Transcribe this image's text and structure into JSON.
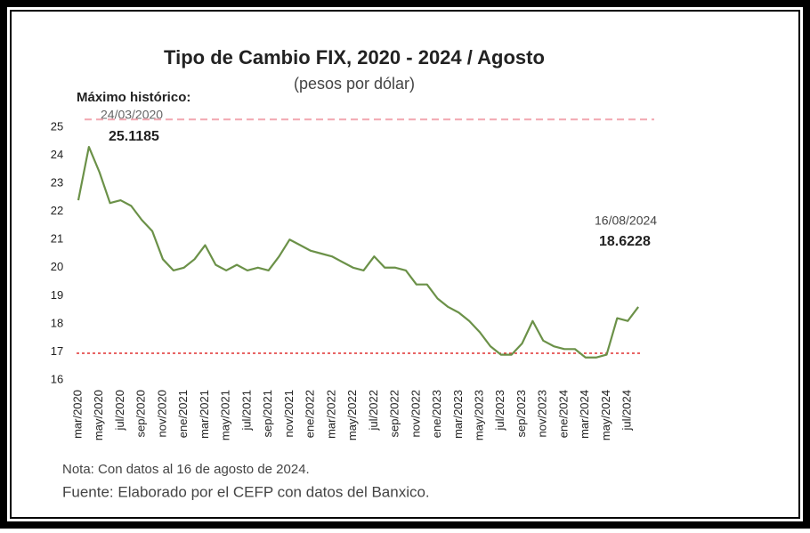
{
  "chart_data": {
    "type": "line",
    "title": "Tipo de Cambio FIX, 2020 - 2024 / Agosto",
    "subtitle": "(pesos por dólar)",
    "categories": [
      "mar/2020",
      null,
      "may/2020",
      null,
      "jul/2020",
      null,
      "sep/2020",
      null,
      "nov/2020",
      null,
      "ene/2021",
      null,
      "mar/2021",
      null,
      "may/2021",
      null,
      "jul/2021",
      null,
      "sep/2021",
      null,
      "nov/2021",
      null,
      "ene/2022",
      null,
      "mar/2022",
      null,
      "may/2022",
      null,
      "jul/2022",
      null,
      "sep/2022",
      null,
      "nov/2022",
      null,
      "ene/2023",
      null,
      "mar/2023",
      null,
      "may/2023",
      null,
      "jul/2023",
      null,
      "sep/2023",
      null,
      "nov/2023",
      null,
      "ene/2024",
      null,
      "mar/2024",
      null,
      "may/2024",
      null,
      "jul/2024",
      null
    ],
    "series": [
      {
        "name": "Tipo de cambio FIX",
        "color": "#6b9148",
        "values": [
          22.4,
          24.3,
          23.4,
          22.3,
          22.4,
          22.2,
          21.7,
          21.3,
          20.3,
          19.9,
          20.0,
          20.3,
          20.8,
          20.1,
          19.9,
          20.1,
          19.9,
          20.0,
          19.9,
          20.4,
          21.0,
          20.8,
          20.6,
          20.5,
          20.4,
          20.2,
          20.0,
          19.9,
          20.4,
          20.0,
          20.0,
          19.9,
          19.4,
          19.4,
          18.9,
          18.6,
          18.4,
          18.1,
          17.7,
          17.2,
          16.9,
          16.9,
          17.3,
          18.1,
          17.4,
          17.2,
          17.1,
          17.1,
          16.8,
          16.8,
          16.9,
          18.2,
          18.1,
          18.6
        ]
      }
    ],
    "ylim": [
      16,
      25
    ],
    "yticks": [
      16,
      17,
      18,
      19,
      20,
      21,
      22,
      23,
      24,
      25
    ],
    "annotations": [
      {
        "label": "Máximo histórico:",
        "date": "24/03/2020",
        "value": 25.1185,
        "color": "#f2a7b1"
      },
      {
        "date": "16/08/2024",
        "value": 18.6228
      }
    ],
    "reference_line": {
      "value": 16.95,
      "color": "#e03131"
    },
    "notes": [
      "Nota: Con datos al 16 de agosto de 2024.",
      "Fuente: Elaborado por el CEFP con datos del Banxico."
    ]
  }
}
